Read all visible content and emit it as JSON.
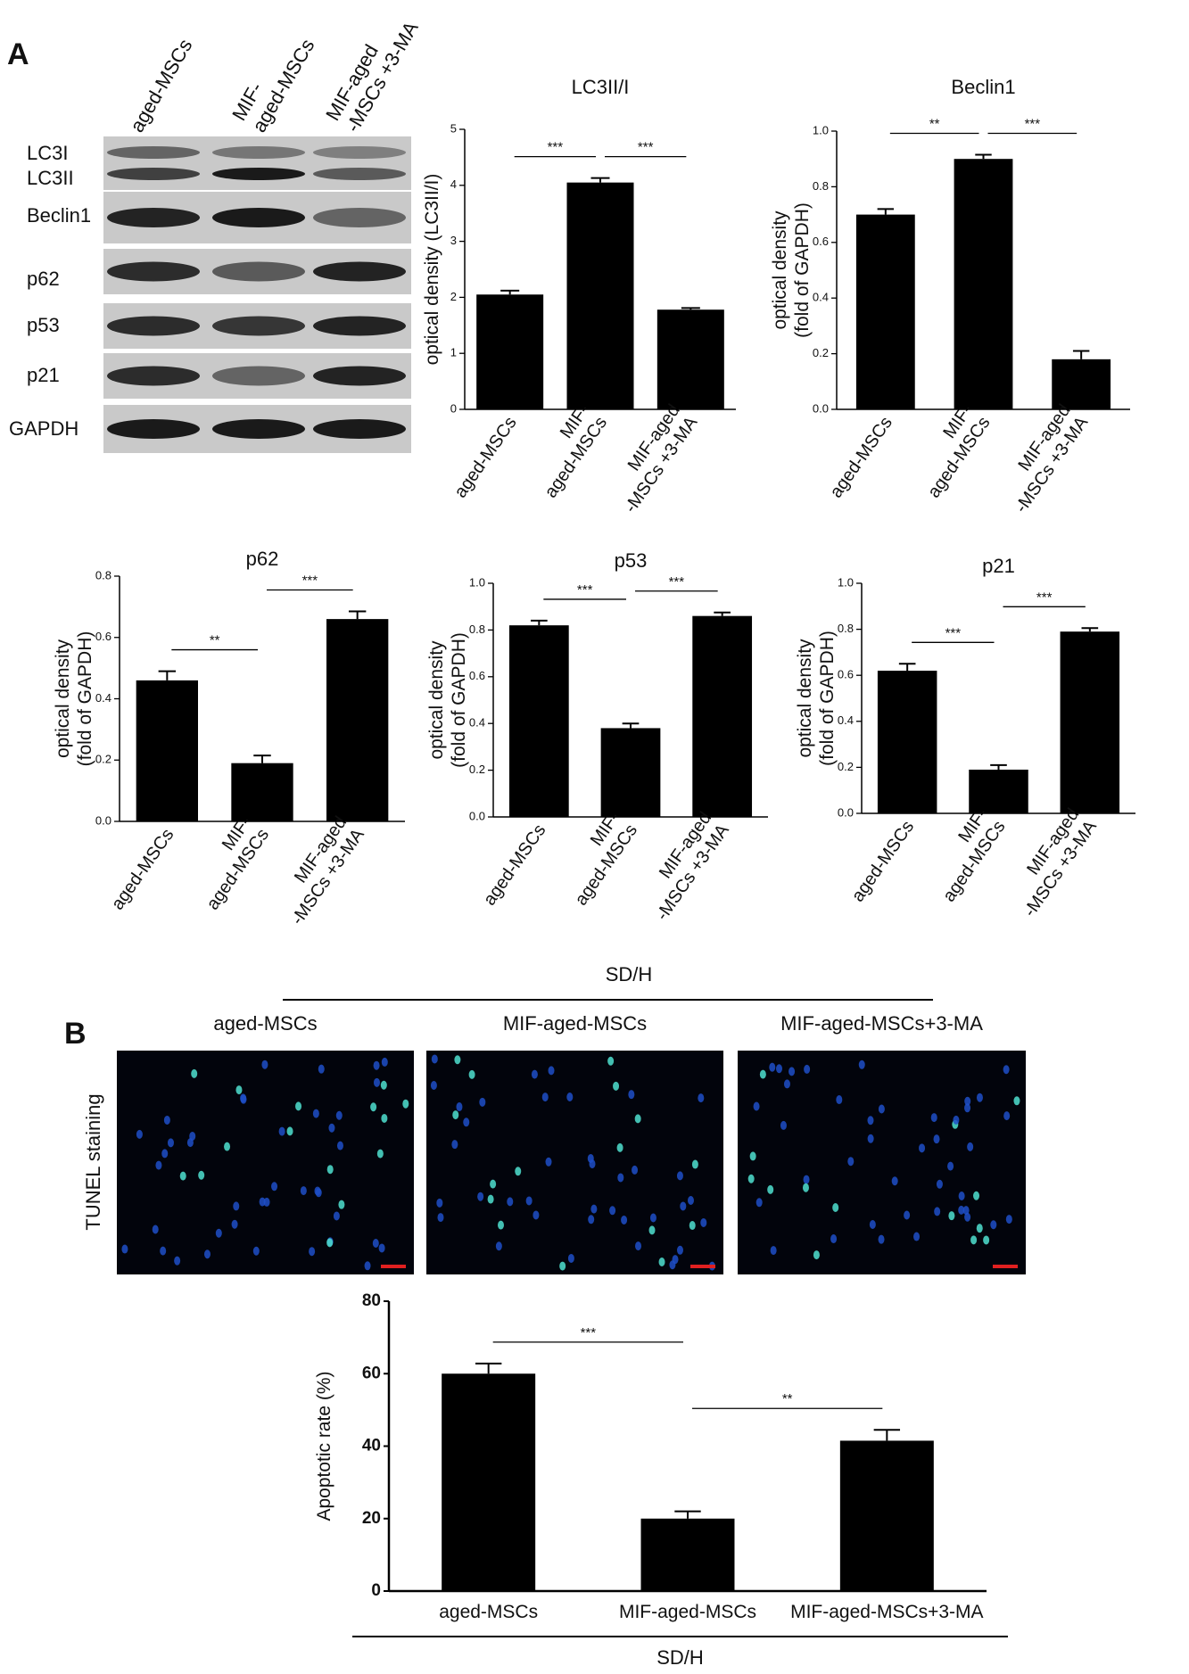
{
  "panel_labels": [
    "A",
    "B"
  ],
  "western_blot": {
    "column_labels": [
      [
        "aged-MSCs"
      ],
      [
        "MIF-",
        "aged-MSCs"
      ],
      [
        "MIF-aged",
        "-MSCs +3-MA"
      ]
    ],
    "row_labels": [
      "LC3I",
      "LC3II",
      "Beclin1",
      "p62",
      "p53",
      "p21",
      "GAPDH"
    ]
  },
  "tunel": {
    "group_label": "SD/H",
    "column_labels": [
      "aged-MSCs",
      "MIF-aged-MSCs",
      "MIF-aged-MSCs+3-MA"
    ],
    "row_label": "TUNEL staining"
  },
  "chart_data": [
    {
      "type": "bar",
      "title": "LC3II/I",
      "ylabel": [
        "optical density (LC3II/I)"
      ],
      "categories": [
        [
          "aged-MSCs"
        ],
        [
          "MIF-",
          "aged-MSCs"
        ],
        [
          "MIF-aged",
          "-MSCs +3-MA"
        ]
      ],
      "values": [
        2.05,
        4.05,
        1.78
      ],
      "errors": [
        0.07,
        0.08,
        0.03
      ],
      "color": "#000000",
      "ylim": [
        0,
        5
      ],
      "yticks": [
        0,
        1,
        2,
        3,
        4,
        5
      ],
      "annotations": [
        {
          "text": "***",
          "from": 0,
          "to": 1
        },
        {
          "text": "***",
          "from": 1,
          "to": 2
        }
      ]
    },
    {
      "type": "bar",
      "title": "Beclin1",
      "ylabel": [
        "optical density",
        "(fold of GAPDH)"
      ],
      "categories": [
        [
          "aged-MSCs"
        ],
        [
          "MIF-",
          "aged-MSCs"
        ],
        [
          "MIF-aged",
          "-MSCs +3-MA"
        ]
      ],
      "values": [
        0.7,
        0.9,
        0.18
      ],
      "errors": [
        0.02,
        0.015,
        0.03
      ],
      "color": "#000000",
      "ylim": [
        0,
        1
      ],
      "yticks": [
        {
          "value": 0,
          "label": "0.0"
        },
        0.2,
        0.4,
        0.6,
        0.8,
        {
          "value": 1,
          "label": "1.0"
        }
      ],
      "annotations": [
        {
          "text": "**",
          "from": 0,
          "to": 1
        },
        {
          "text": "***",
          "from": 1,
          "to": 2
        }
      ]
    },
    {
      "type": "bar",
      "title": "p62",
      "ylabel": [
        "optical density",
        "(fold of GAPDH)"
      ],
      "categories": [
        [
          "aged-MSCs"
        ],
        [
          "MIF-",
          "aged-MSCs"
        ],
        [
          "MIF-aged",
          "-MSCs +3-MA"
        ]
      ],
      "values": [
        0.46,
        0.19,
        0.66
      ],
      "errors": [
        0.03,
        0.025,
        0.025
      ],
      "color": "#000000",
      "ylim": [
        0,
        0.8
      ],
      "yticks": [
        {
          "value": 0,
          "label": "0.0"
        },
        0.2,
        0.4,
        0.6,
        0.8
      ],
      "annotations": [
        {
          "text": "**",
          "from": 0,
          "to": 1
        },
        {
          "text": "***",
          "from": 1,
          "to": 2
        }
      ]
    },
    {
      "type": "bar",
      "title": "p53",
      "ylabel": [
        "optical density",
        "(fold of GAPDH)"
      ],
      "categories": [
        [
          "aged-MSCs"
        ],
        [
          "MIF-",
          "aged-MSCs"
        ],
        [
          "MIF-aged",
          "-MSCs +3-MA"
        ]
      ],
      "values": [
        0.82,
        0.38,
        0.86
      ],
      "errors": [
        0.02,
        0.02,
        0.015
      ],
      "color": "#000000",
      "ylim": [
        0,
        1
      ],
      "yticks": [
        {
          "value": 0,
          "label": "0.0"
        },
        0.2,
        0.4,
        0.6,
        0.8,
        {
          "value": 1,
          "label": "1.0"
        }
      ],
      "annotations": [
        {
          "text": "***",
          "from": 0,
          "to": 1
        },
        {
          "text": "***",
          "from": 1,
          "to": 2
        }
      ]
    },
    {
      "type": "bar",
      "title": "p21",
      "ylabel": [
        "optical density",
        "(fold of GAPDH)"
      ],
      "categories": [
        [
          "aged-MSCs"
        ],
        [
          "MIF-",
          "aged-MSCs"
        ],
        [
          "MIF-aged",
          "-MSCs +3-MA"
        ]
      ],
      "values": [
        0.62,
        0.19,
        0.79
      ],
      "errors": [
        0.03,
        0.02,
        0.015
      ],
      "color": "#000000",
      "ylim": [
        0,
        1
      ],
      "yticks": [
        {
          "value": 0,
          "label": "0.0"
        },
        0.2,
        0.4,
        0.6,
        0.8,
        {
          "value": 1,
          "label": "1.0"
        }
      ],
      "annotations": [
        {
          "text": "***",
          "from": 0,
          "to": 1
        },
        {
          "text": "***",
          "from": 1,
          "to": 2
        }
      ]
    },
    {
      "type": "bar",
      "ylabel": [
        "Apoptotic rate (%)"
      ],
      "xlabel": "SD/H",
      "categories": [
        [
          "aged-MSCs"
        ],
        [
          "MIF-aged-MSCs"
        ],
        [
          "MIF-aged-MSCs+3-MA"
        ]
      ],
      "values": [
        60,
        20,
        41.5
      ],
      "errors": [
        2.8,
        2,
        3
      ],
      "color": "#000000",
      "ylim": [
        0,
        80
      ],
      "yticks": [
        0,
        20,
        40,
        60,
        80
      ],
      "annotations": [
        {
          "text": "***",
          "from": 0,
          "to": 1
        },
        {
          "text": "**",
          "from": 1,
          "to": 2
        }
      ]
    }
  ]
}
